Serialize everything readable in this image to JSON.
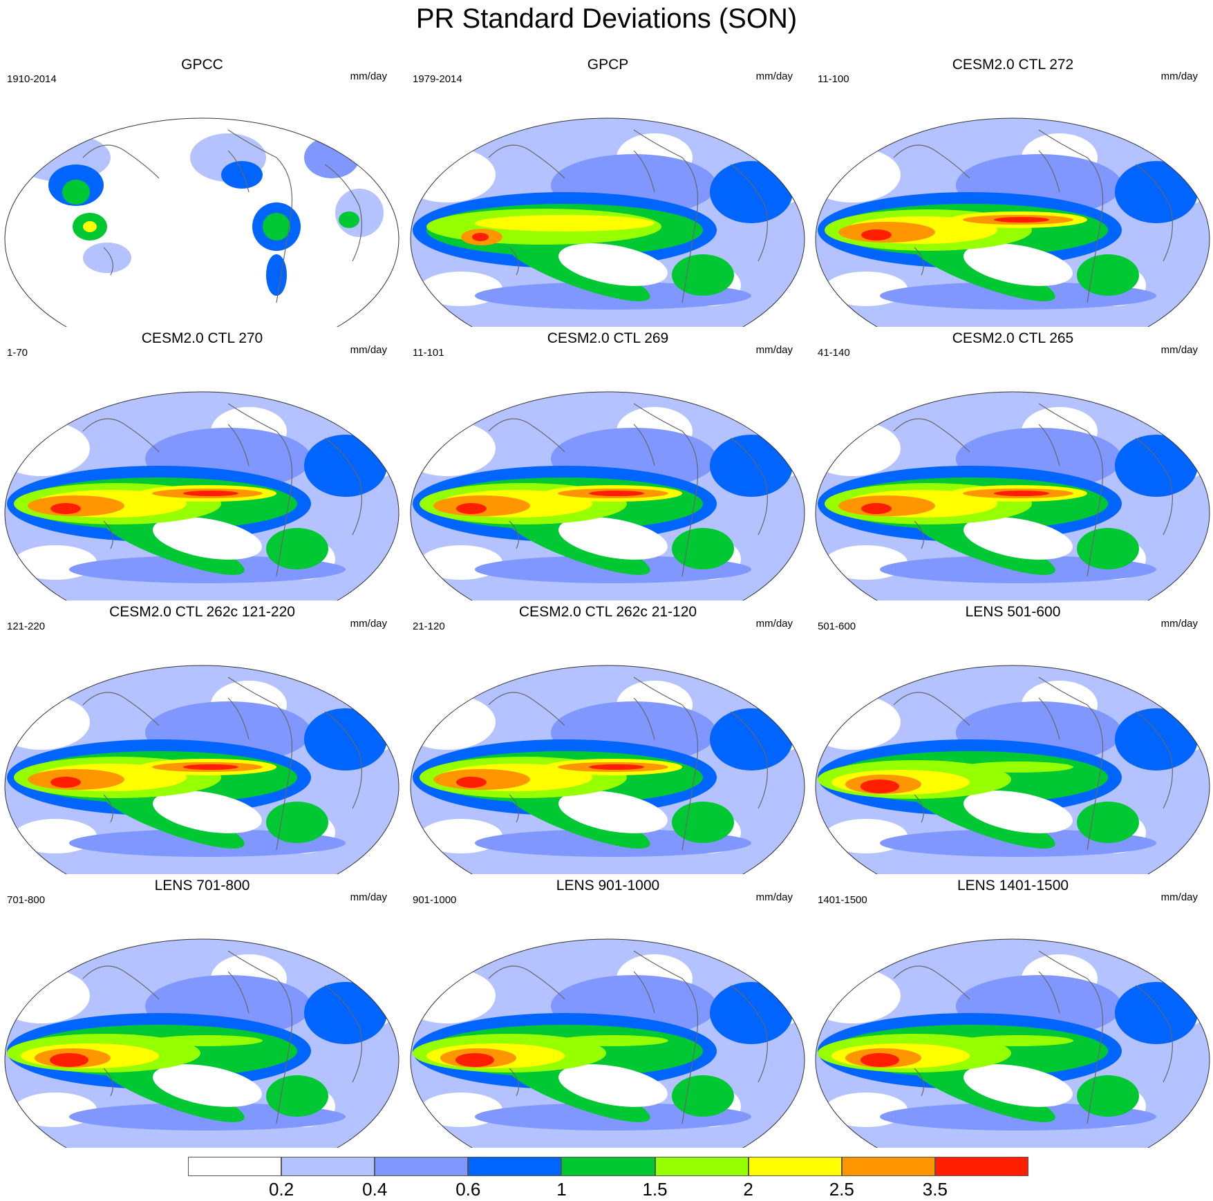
{
  "title": "PR Standard Deviations (SON)",
  "panels": [
    {
      "title": "GPCC",
      "years": "1910-2014",
      "units": "mm/day",
      "pattern": "land_only"
    },
    {
      "title": "GPCP",
      "years": "1979-2014",
      "units": "mm/day",
      "pattern": "obs"
    },
    {
      "title": "CESM2.0 CTL 272",
      "years": "11-100",
      "units": "mm/day",
      "pattern": "model"
    },
    {
      "title": "CESM2.0 CTL 270",
      "years": "1-70",
      "units": "mm/day",
      "pattern": "model"
    },
    {
      "title": "CESM2.0 CTL 269",
      "years": "11-101",
      "units": "mm/day",
      "pattern": "model"
    },
    {
      "title": "CESM2.0 CTL 265",
      "years": "41-140",
      "units": "mm/day",
      "pattern": "model"
    },
    {
      "title": "CESM2.0 CTL 262c 121-220",
      "years": "121-220",
      "units": "mm/day",
      "pattern": "model"
    },
    {
      "title": "CESM2.0 CTL 262c 21-120",
      "years": "21-120",
      "units": "mm/day",
      "pattern": "model"
    },
    {
      "title": "LENS 501-600",
      "years": "501-600",
      "units": "mm/day",
      "pattern": "lens"
    },
    {
      "title": "LENS 701-800",
      "years": "701-800",
      "units": "mm/day",
      "pattern": "lens"
    },
    {
      "title": "LENS 901-1000",
      "years": "901-1000",
      "units": "mm/day",
      "pattern": "lens"
    },
    {
      "title": "LENS 1401-1500",
      "years": "1401-1500",
      "units": "mm/day",
      "pattern": "lens"
    }
  ],
  "colorbar": {
    "colors": [
      "#ffffff",
      "#b4c3ff",
      "#8097ff",
      "#0064ff",
      "#00c832",
      "#96ff00",
      "#ffff00",
      "#ff9600",
      "#ff1e00"
    ],
    "labels": [
      "0.2",
      "0.4",
      "0.6",
      "1",
      "1.5",
      "2",
      "2.5",
      "3.5"
    ]
  }
}
